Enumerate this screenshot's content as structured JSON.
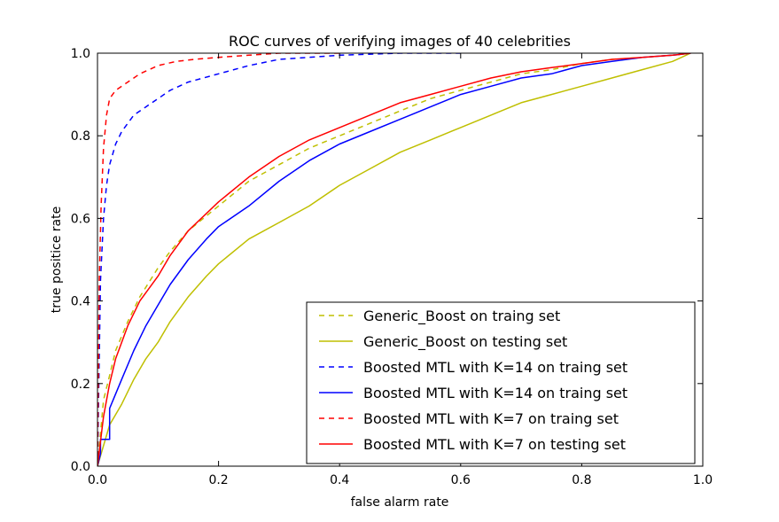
{
  "chart_data": {
    "type": "line",
    "title": "ROC curves of verifying images of 40 celebrities",
    "xlabel": "false alarm rate",
    "ylabel": "true positice rate",
    "xlim": [
      0.0,
      1.0
    ],
    "ylim": [
      0.0,
      1.0
    ],
    "xticks": [
      0.0,
      0.2,
      0.4,
      0.6,
      0.8,
      1.0
    ],
    "yticks": [
      0.0,
      0.2,
      0.4,
      0.6,
      0.8,
      1.0
    ],
    "xtick_labels": [
      "0.0",
      "0.2",
      "0.4",
      "0.6",
      "0.8",
      "1.0"
    ],
    "ytick_labels": [
      "0.0",
      "0.2",
      "0.4",
      "0.6",
      "0.8",
      "1.0"
    ],
    "grid": false,
    "legend_position": "bottom-right",
    "series": [
      {
        "name": "Generic_Boost on traing set",
        "color": "#bfbf00",
        "dash": "dashed",
        "x": [
          0.0,
          0.01,
          0.02,
          0.03,
          0.05,
          0.07,
          0.1,
          0.12,
          0.15,
          0.2,
          0.25,
          0.3,
          0.35,
          0.4,
          0.45,
          0.5,
          0.55,
          0.6,
          0.65,
          0.7,
          0.75,
          0.8,
          0.85,
          0.9,
          0.95,
          0.98
        ],
        "y": [
          0.0,
          0.16,
          0.22,
          0.28,
          0.35,
          0.41,
          0.48,
          0.52,
          0.57,
          0.63,
          0.69,
          0.73,
          0.77,
          0.8,
          0.83,
          0.86,
          0.89,
          0.91,
          0.93,
          0.95,
          0.96,
          0.975,
          0.985,
          0.99,
          0.995,
          1.0
        ]
      },
      {
        "name": "Generic_Boost on testing set",
        "color": "#bfbf00",
        "dash": "solid",
        "x": [
          0.0,
          0.02,
          0.04,
          0.06,
          0.08,
          0.1,
          0.12,
          0.15,
          0.18,
          0.2,
          0.25,
          0.3,
          0.35,
          0.4,
          0.45,
          0.5,
          0.55,
          0.6,
          0.65,
          0.7,
          0.75,
          0.8,
          0.85,
          0.9,
          0.95,
          0.98
        ],
        "y": [
          0.0,
          0.1,
          0.15,
          0.21,
          0.26,
          0.3,
          0.35,
          0.41,
          0.46,
          0.49,
          0.55,
          0.59,
          0.63,
          0.68,
          0.72,
          0.76,
          0.79,
          0.82,
          0.85,
          0.88,
          0.9,
          0.92,
          0.94,
          0.96,
          0.98,
          1.0
        ]
      },
      {
        "name": "Boosted MTL with K=14 on traing set",
        "color": "#0000ff",
        "dash": "dashed",
        "x": [
          0.0,
          0.005,
          0.01,
          0.015,
          0.02,
          0.03,
          0.04,
          0.06,
          0.08,
          0.1,
          0.12,
          0.15,
          0.2,
          0.25,
          0.3,
          0.35,
          0.4,
          0.5,
          0.6
        ],
        "y": [
          0.0,
          0.45,
          0.6,
          0.68,
          0.73,
          0.78,
          0.81,
          0.85,
          0.87,
          0.89,
          0.91,
          0.93,
          0.95,
          0.97,
          0.985,
          0.99,
          0.995,
          1.0,
          1.0
        ]
      },
      {
        "name": "Boosted MTL with K=14 on traing set",
        "color": "#0000ff",
        "dash": "solid",
        "x": [
          0.0,
          0.005,
          0.005,
          0.02,
          0.02,
          0.04,
          0.06,
          0.08,
          0.1,
          0.12,
          0.15,
          0.18,
          0.2,
          0.25,
          0.3,
          0.35,
          0.4,
          0.45,
          0.5,
          0.55,
          0.6,
          0.65,
          0.7,
          0.75,
          0.8,
          0.85,
          0.9,
          0.95,
          0.98
        ],
        "y": [
          0.0,
          0.03,
          0.065,
          0.065,
          0.14,
          0.21,
          0.28,
          0.34,
          0.39,
          0.44,
          0.5,
          0.55,
          0.58,
          0.63,
          0.69,
          0.74,
          0.78,
          0.81,
          0.84,
          0.87,
          0.9,
          0.92,
          0.94,
          0.95,
          0.97,
          0.98,
          0.99,
          0.995,
          1.0
        ]
      },
      {
        "name": "Boosted MTL with K=7 on traing set",
        "color": "#ff0000",
        "dash": "dashed",
        "x": [
          0.0,
          0.003,
          0.006,
          0.01,
          0.015,
          0.02,
          0.03,
          0.05,
          0.07,
          0.1,
          0.13,
          0.16,
          0.2,
          0.25,
          0.3,
          0.4
        ],
        "y": [
          0.0,
          0.45,
          0.63,
          0.77,
          0.85,
          0.89,
          0.91,
          0.93,
          0.95,
          0.97,
          0.98,
          0.985,
          0.99,
          0.995,
          1.0,
          1.0
        ]
      },
      {
        "name": "Boosted MTL with K=7 on testing set",
        "color": "#ff0000",
        "dash": "solid",
        "x": [
          0.0,
          0.01,
          0.02,
          0.03,
          0.05,
          0.07,
          0.1,
          0.12,
          0.15,
          0.2,
          0.25,
          0.3,
          0.35,
          0.4,
          0.45,
          0.5,
          0.55,
          0.6,
          0.65,
          0.7,
          0.75,
          0.8,
          0.85,
          0.9,
          0.95,
          0.98
        ],
        "y": [
          0.0,
          0.12,
          0.2,
          0.26,
          0.34,
          0.4,
          0.46,
          0.51,
          0.57,
          0.64,
          0.7,
          0.75,
          0.79,
          0.82,
          0.85,
          0.88,
          0.9,
          0.92,
          0.94,
          0.955,
          0.965,
          0.975,
          0.985,
          0.99,
          0.995,
          1.0
        ]
      }
    ]
  }
}
